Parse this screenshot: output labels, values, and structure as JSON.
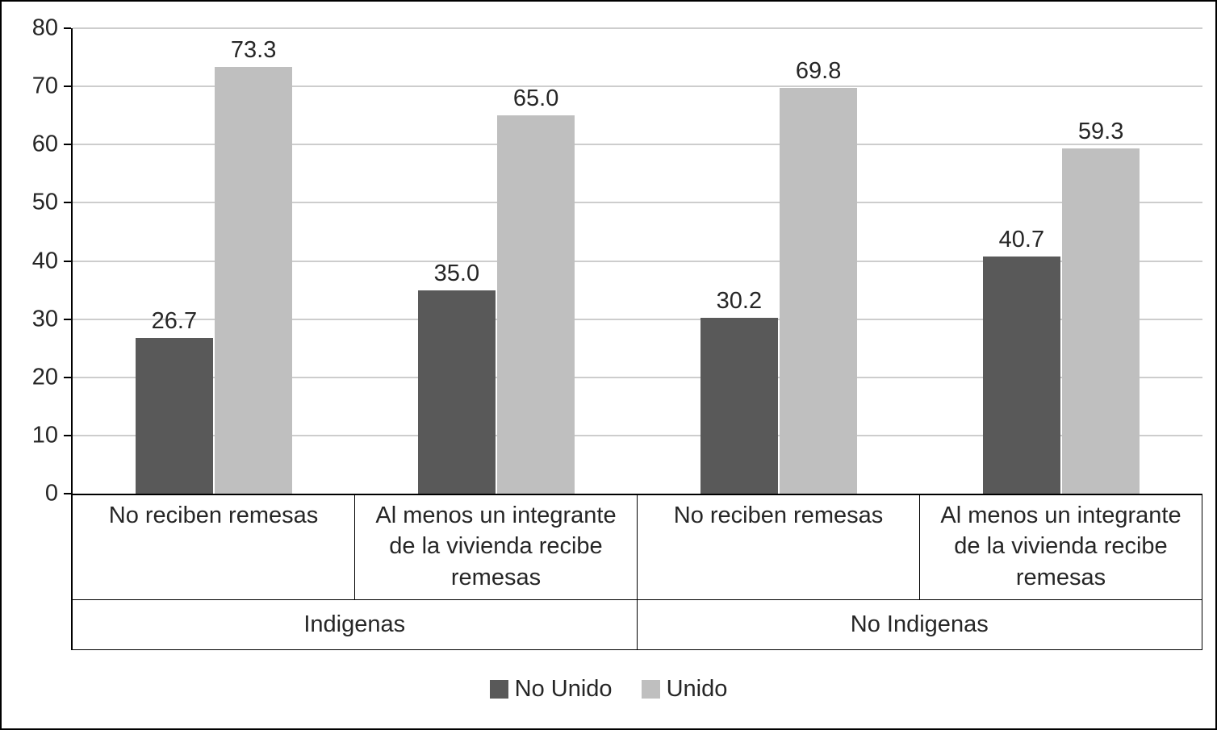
{
  "chart_data": {
    "type": "bar",
    "title": "",
    "categories": [
      "No reciben remesas",
      "Al menos un integrante de la vivienda recibe remesas",
      "No reciben remesas",
      "Al menos un integrante de la vivienda recibe remesas"
    ],
    "category_groups": [
      {
        "label": "Indigenas",
        "span": 2
      },
      {
        "label": "No Indigenas",
        "span": 2
      }
    ],
    "series": [
      {
        "name": "No Unido",
        "color": "#595959",
        "values": [
          26.7,
          35.0,
          30.2,
          40.7
        ]
      },
      {
        "name": "Unido",
        "color": "#BFBFBF",
        "values": [
          73.3,
          65.0,
          69.8,
          59.3
        ]
      }
    ],
    "ylim": [
      0,
      80
    ],
    "yticks": [
      0,
      10,
      20,
      30,
      40,
      50,
      60,
      70,
      80
    ],
    "grid": true,
    "grid_color": "#CDCDCD",
    "axis_color": "#000000",
    "legend_position": "bottom",
    "data_labels_decimals": 1
  }
}
